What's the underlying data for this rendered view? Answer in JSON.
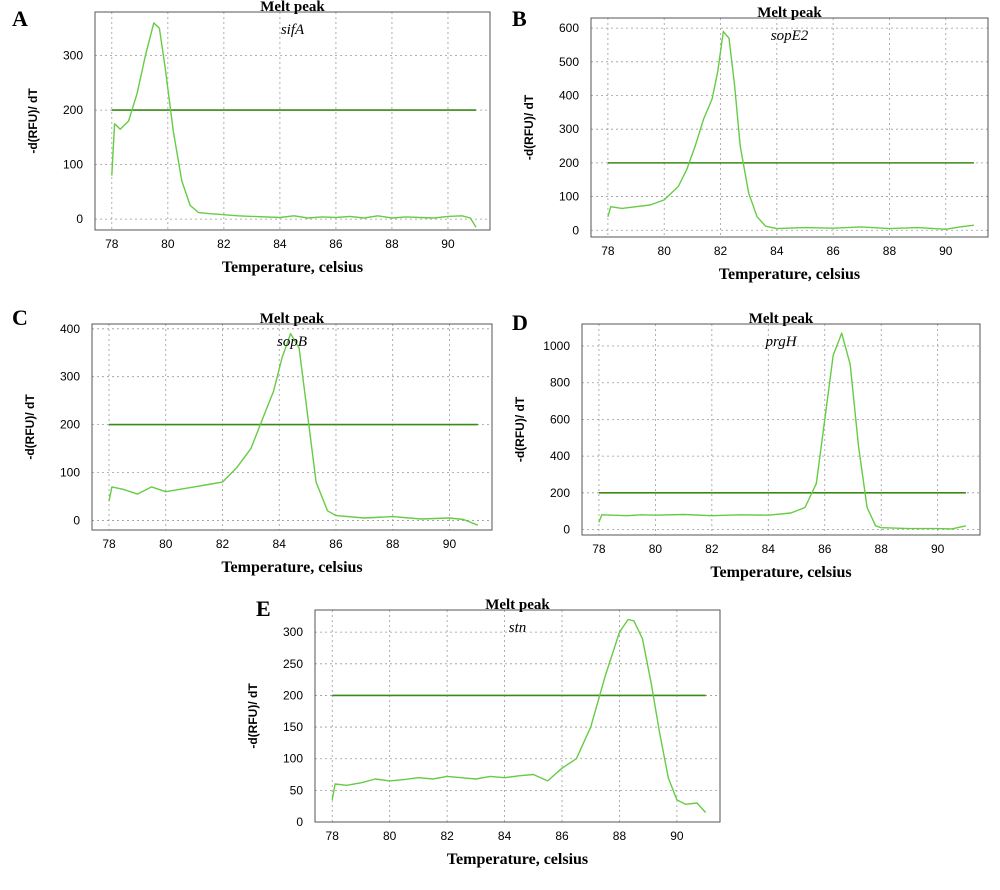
{
  "colors": {
    "curve": "#66cc44",
    "threshold": "#3a8a14"
  },
  "chart_data": [
    {
      "panel": "A",
      "type": "line",
      "title": "Melt peak",
      "annotation": "sifA",
      "xlabel": "Temperature, celsius",
      "ylabel": "-d(RFU)/ dT",
      "xlim": [
        77.4,
        91.5
      ],
      "ylim": [
        -20,
        380
      ],
      "xticks": [
        78,
        80,
        82,
        84,
        86,
        88,
        90
      ],
      "yticks": [
        0,
        100,
        200,
        300
      ],
      "threshold": 200,
      "series": [
        {
          "x": [
            78.0,
            78.1,
            78.3,
            78.6,
            78.9,
            79.2,
            79.5,
            79.7,
            79.9,
            80.2,
            80.5,
            80.8,
            81.1,
            81.5,
            82.0,
            82.5,
            83.0,
            84.0,
            84.5,
            85.0,
            85.5,
            86.0,
            86.5,
            87.0,
            87.5,
            88.0,
            88.5,
            89.0,
            89.5,
            90.0,
            90.5,
            90.8,
            91.0
          ],
          "y": [
            80,
            175,
            165,
            180,
            230,
            300,
            360,
            350,
            280,
            160,
            70,
            25,
            12,
            10,
            8,
            6,
            5,
            3,
            6,
            2,
            4,
            3,
            5,
            2,
            6,
            2,
            4,
            3,
            2,
            5,
            6,
            2,
            -15
          ]
        }
      ]
    },
    {
      "panel": "B",
      "type": "line",
      "title": "Melt peak",
      "annotation": "sopE2",
      "xlabel": "Temperature, celsius",
      "ylabel": "-d(RFU)/ dT",
      "xlim": [
        77.4,
        91.5
      ],
      "ylim": [
        -20,
        630
      ],
      "xticks": [
        78,
        80,
        82,
        84,
        86,
        88,
        90
      ],
      "yticks": [
        0,
        100,
        200,
        300,
        400,
        500,
        600
      ],
      "threshold": 200,
      "series": [
        {
          "x": [
            78.0,
            78.1,
            78.5,
            79.0,
            79.5,
            80.0,
            80.5,
            80.8,
            81.1,
            81.4,
            81.7,
            81.9,
            82.1,
            82.3,
            82.5,
            82.7,
            83.0,
            83.3,
            83.6,
            84.0,
            85.0,
            86.0,
            87.0,
            88.0,
            89.0,
            90.0,
            90.5,
            91.0
          ],
          "y": [
            40,
            70,
            65,
            70,
            75,
            90,
            130,
            180,
            250,
            330,
            390,
            470,
            590,
            570,
            430,
            250,
            110,
            40,
            12,
            5,
            8,
            6,
            10,
            5,
            8,
            3,
            10,
            15
          ]
        }
      ]
    },
    {
      "panel": "C",
      "type": "line",
      "title": "Melt peak",
      "annotation": "sopB",
      "xlabel": "Temperature, celsius",
      "ylabel": "-d(RFU)/ dT",
      "xlim": [
        77.4,
        91.5
      ],
      "ylim": [
        -20,
        410
      ],
      "xticks": [
        78,
        80,
        82,
        84,
        86,
        88,
        90
      ],
      "yticks": [
        0,
        100,
        200,
        300,
        400
      ],
      "threshold": 200,
      "series": [
        {
          "x": [
            78.0,
            78.1,
            78.5,
            79.0,
            79.5,
            80.0,
            80.5,
            81.0,
            81.5,
            82.0,
            82.5,
            83.0,
            83.4,
            83.8,
            84.1,
            84.4,
            84.7,
            85.0,
            85.3,
            85.7,
            86.0,
            87.0,
            88.0,
            89.0,
            90.0,
            90.5,
            91.0
          ],
          "y": [
            40,
            70,
            65,
            55,
            70,
            60,
            65,
            70,
            75,
            80,
            110,
            150,
            210,
            270,
            340,
            390,
            360,
            220,
            80,
            20,
            10,
            5,
            8,
            3,
            5,
            2,
            -10
          ]
        }
      ]
    },
    {
      "panel": "D",
      "type": "line",
      "title": "Melt peak",
      "annotation": "prgH",
      "xlabel": "Temperature, celsius",
      "ylabel": "-d(RFU)/ dT",
      "xlim": [
        77.4,
        91.5
      ],
      "ylim": [
        -30,
        1120
      ],
      "xticks": [
        78,
        80,
        82,
        84,
        86,
        88,
        90
      ],
      "yticks": [
        0,
        200,
        400,
        600,
        800,
        1000
      ],
      "threshold": 200,
      "series": [
        {
          "x": [
            78.0,
            78.1,
            78.5,
            79.0,
            79.5,
            80.0,
            81.0,
            82.0,
            83.0,
            84.0,
            84.8,
            85.3,
            85.7,
            86.0,
            86.3,
            86.6,
            86.9,
            87.2,
            87.5,
            87.8,
            88.0,
            89.0,
            90.0,
            90.5,
            91.0
          ],
          "y": [
            40,
            80,
            78,
            75,
            80,
            78,
            82,
            75,
            80,
            78,
            90,
            120,
            250,
            600,
            950,
            1070,
            900,
            450,
            120,
            20,
            10,
            5,
            5,
            3,
            20
          ]
        }
      ]
    },
    {
      "panel": "E",
      "type": "line",
      "title": "Melt peak",
      "annotation": "stn",
      "xlabel": "Temperature, celsius",
      "ylabel": "-d(RFU)/ dT",
      "xlim": [
        77.4,
        91.5
      ],
      "ylim": [
        0,
        335
      ],
      "xticks": [
        78,
        80,
        82,
        84,
        86,
        88,
        90
      ],
      "yticks": [
        0,
        50,
        100,
        150,
        200,
        250,
        300
      ],
      "threshold": 200,
      "series": [
        {
          "x": [
            78.0,
            78.1,
            78.5,
            79.0,
            79.5,
            80.0,
            80.5,
            81.0,
            81.5,
            82.0,
            82.5,
            83.0,
            83.5,
            84.0,
            84.5,
            85.0,
            85.5,
            86.0,
            86.5,
            87.0,
            87.5,
            88.0,
            88.3,
            88.5,
            88.8,
            89.1,
            89.4,
            89.7,
            90.0,
            90.3,
            90.7,
            91.0
          ],
          "y": [
            35,
            60,
            58,
            62,
            68,
            65,
            67,
            70,
            68,
            72,
            70,
            68,
            72,
            70,
            73,
            75,
            65,
            85,
            100,
            150,
            230,
            300,
            320,
            318,
            290,
            220,
            140,
            70,
            35,
            28,
            30,
            15
          ]
        }
      ]
    }
  ]
}
